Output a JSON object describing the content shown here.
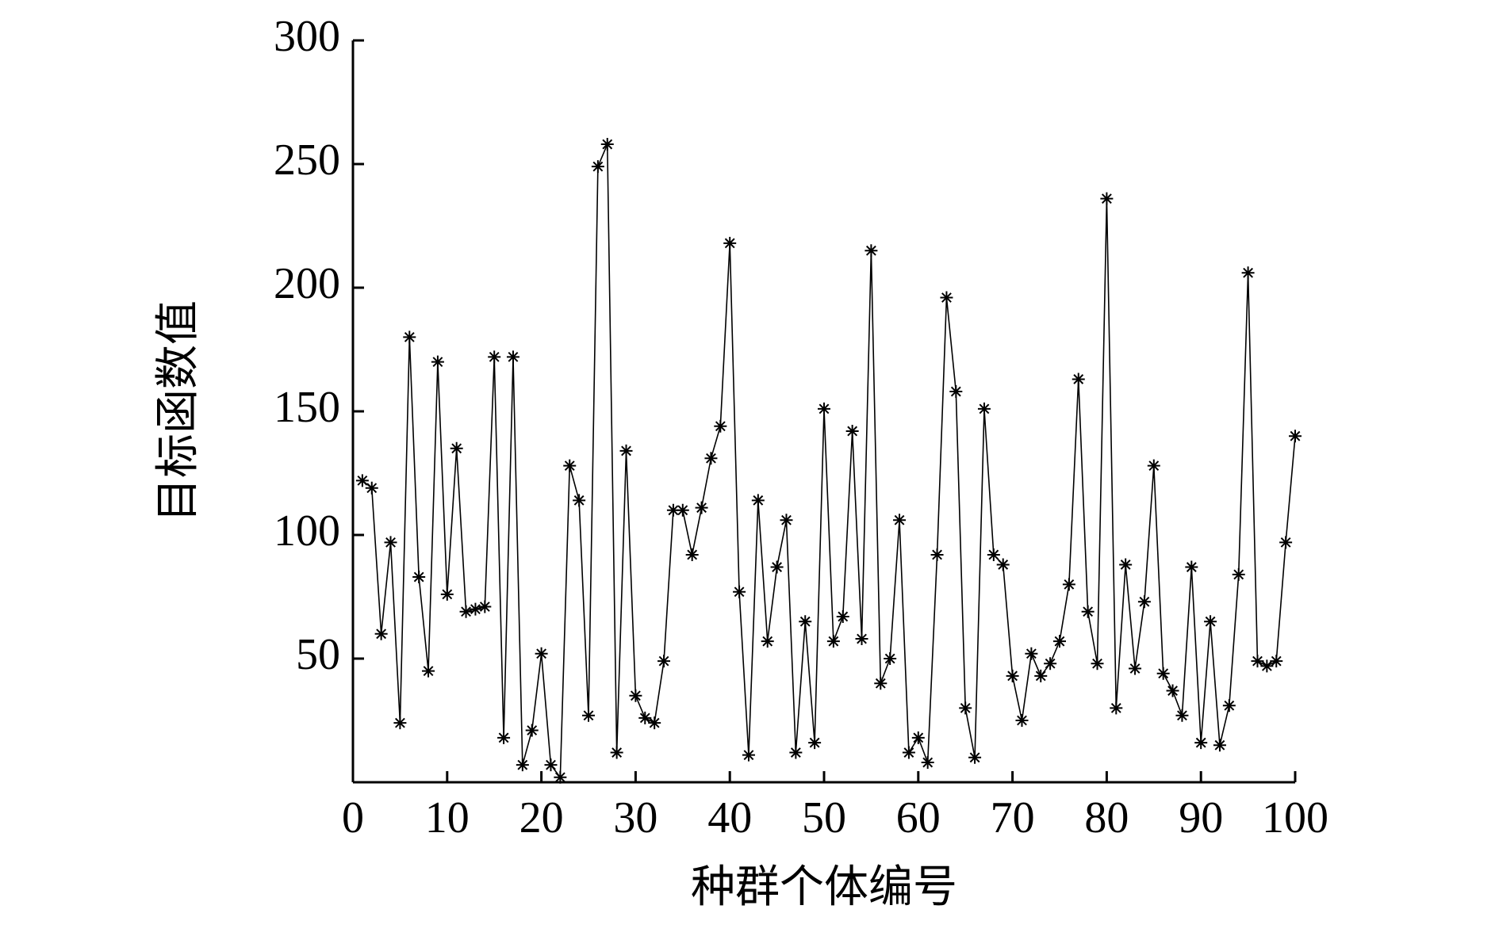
{
  "chart_data": {
    "type": "line",
    "x_label": "种群个体编号",
    "y_label": "目标函数值",
    "x": [
      1,
      2,
      3,
      4,
      5,
      6,
      7,
      8,
      9,
      10,
      11,
      12,
      13,
      14,
      15,
      16,
      17,
      18,
      19,
      20,
      21,
      22,
      23,
      24,
      25,
      26,
      27,
      28,
      29,
      30,
      31,
      32,
      33,
      34,
      35,
      36,
      37,
      38,
      39,
      40,
      41,
      42,
      43,
      44,
      45,
      46,
      47,
      48,
      49,
      50,
      51,
      52,
      53,
      54,
      55,
      56,
      57,
      58,
      59,
      60,
      61,
      62,
      63,
      64,
      65,
      66,
      67,
      68,
      69,
      70,
      71,
      72,
      73,
      74,
      75,
      76,
      77,
      78,
      79,
      80,
      81,
      82,
      83,
      84,
      85,
      86,
      87,
      88,
      89,
      90,
      91,
      92,
      93,
      94,
      95,
      96,
      97,
      98,
      99,
      100
    ],
    "series": [
      {
        "color": "#000000",
        "marker": "*",
        "values": [
          122,
          119,
          60,
          97,
          24,
          180,
          83,
          45,
          170,
          76,
          135,
          69,
          70,
          71,
          172,
          18,
          172,
          7,
          21,
          52,
          7,
          2,
          128,
          114,
          27,
          249,
          258,
          12,
          134,
          35,
          26,
          24,
          49,
          110,
          110,
          92,
          111,
          131,
          144,
          218,
          77,
          11,
          114,
          57,
          87,
          106,
          12,
          65,
          16,
          151,
          57,
          67,
          142,
          58,
          215,
          40,
          50,
          106,
          12,
          18,
          8,
          92,
          196,
          158,
          30,
          10,
          151,
          92,
          88,
          43,
          25,
          52,
          43,
          48,
          57,
          80,
          163,
          69,
          48,
          236,
          30,
          88,
          46,
          73,
          128,
          44,
          37,
          27,
          87,
          16,
          65,
          15,
          31,
          84,
          206,
          49,
          47,
          49,
          97,
          140
        ]
      }
    ],
    "xlim": [
      0,
      100
    ],
    "ylim": [
      0,
      300
    ],
    "xticks": [
      0,
      10,
      20,
      30,
      40,
      50,
      60,
      70,
      80,
      90,
      100
    ],
    "yticks": [
      50,
      100,
      150,
      200,
      250,
      300
    ]
  }
}
